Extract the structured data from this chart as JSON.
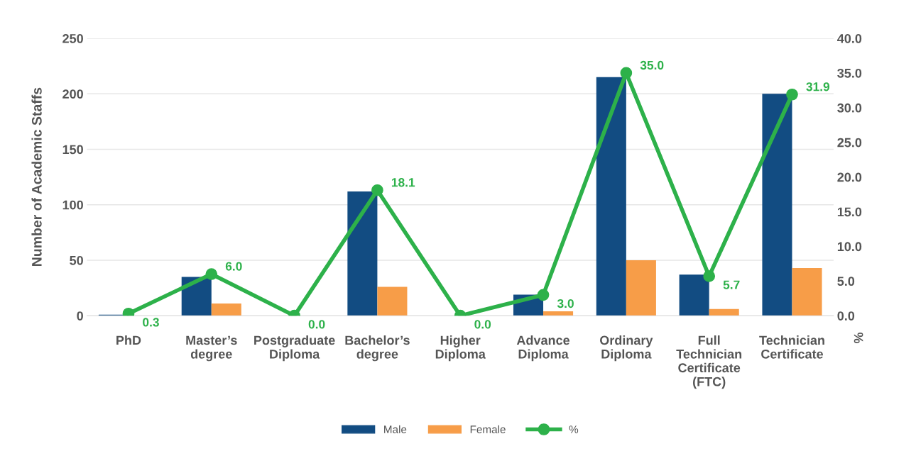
{
  "chart_data": {
    "type": "bar",
    "categories": [
      "PhD",
      "Master’s degree",
      "Postgraduate Diploma",
      "Bachelor’s degree",
      "Higher Diploma",
      "Advance Diploma",
      "Ordinary Diploma",
      "Full Technician Certificate (FTC)",
      "Technician Certificate"
    ],
    "ylabel": "Number of Academic Staffs",
    "y2label": "%",
    "series": [
      {
        "name": "Male",
        "color": "#124c82",
        "values": [
          1,
          35,
          0,
          112,
          0,
          19,
          215,
          37,
          200
        ]
      },
      {
        "name": "Female",
        "color": "#f79d48",
        "values": [
          0,
          11,
          0,
          26,
          0,
          4,
          50,
          6,
          43
        ]
      },
      {
        "name": "%",
        "type": "line",
        "axis": "y2",
        "color": "#2db14a",
        "marker": "circle",
        "data_labels": true,
        "value_labels": [
          "0.3",
          "6.0",
          "0.0",
          "18.1",
          "0.0",
          "3.0",
          "35.0",
          "5.7",
          "31.9"
        ],
        "values": [
          0.3,
          6.0,
          0.0,
          18.1,
          0.0,
          3.0,
          35.0,
          5.7,
          31.9
        ]
      }
    ],
    "ylim": [
      0,
      250
    ],
    "yticks": [
      0,
      50,
      100,
      150,
      200,
      250
    ],
    "y2lim": [
      0,
      40
    ],
    "y2ticks": [
      {
        "value": 0,
        "label": "0.0"
      },
      {
        "value": 5,
        "label": "5.0"
      },
      {
        "value": 10,
        "label": "10.0"
      },
      {
        "value": 15,
        "label": "15.0"
      },
      {
        "value": 20,
        "label": "20.0"
      },
      {
        "value": 25,
        "label": "25.0"
      },
      {
        "value": 30,
        "label": "30.0"
      },
      {
        "value": 35,
        "label": "35.0"
      },
      {
        "value": 40,
        "label": "40.0"
      }
    ],
    "grid": "y",
    "legend": "bottom"
  }
}
